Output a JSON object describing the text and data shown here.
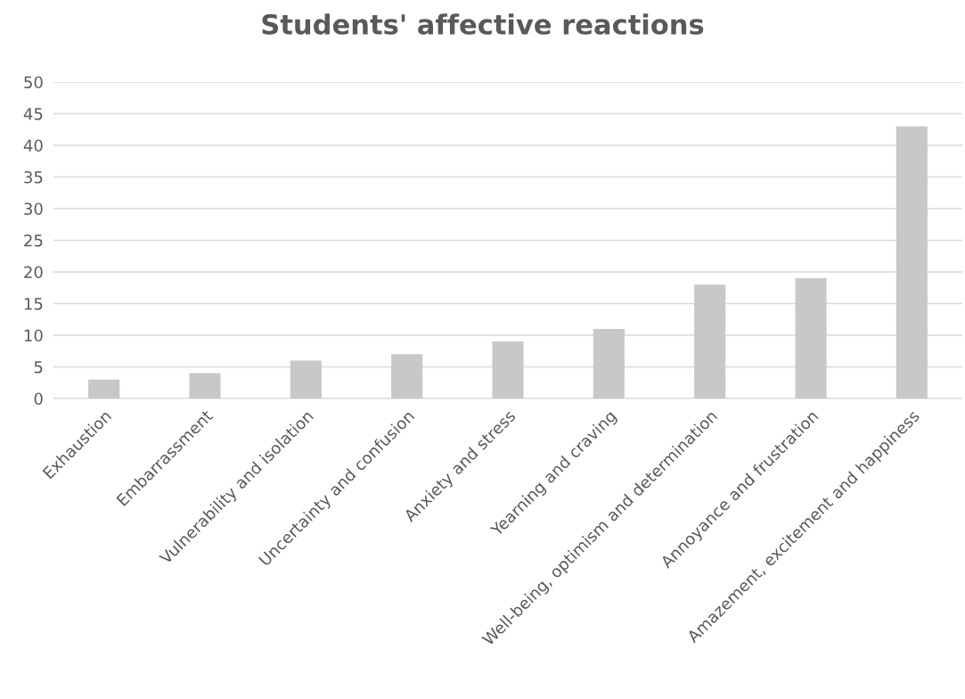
{
  "chart_data": {
    "type": "bar",
    "title": "Students' affective reactions",
    "categories": [
      "Exhaustion",
      "Embarrassment",
      "Vulnerability and isolation",
      "Uncertainty and confusion",
      "Anxiety and stress",
      "Yearning and craving",
      "Well-being, optimism and determination",
      "Annoyance and frustration",
      "Amazement, excitement and happiness"
    ],
    "values": [
      3,
      4,
      6,
      7,
      9,
      11,
      18,
      19,
      43
    ],
    "color": "#c8c8c8",
    "ylim": [
      0,
      50
    ],
    "yticks": [
      0,
      5,
      10,
      15,
      20,
      25,
      30,
      35,
      40,
      45,
      50
    ],
    "grid": "y"
  }
}
